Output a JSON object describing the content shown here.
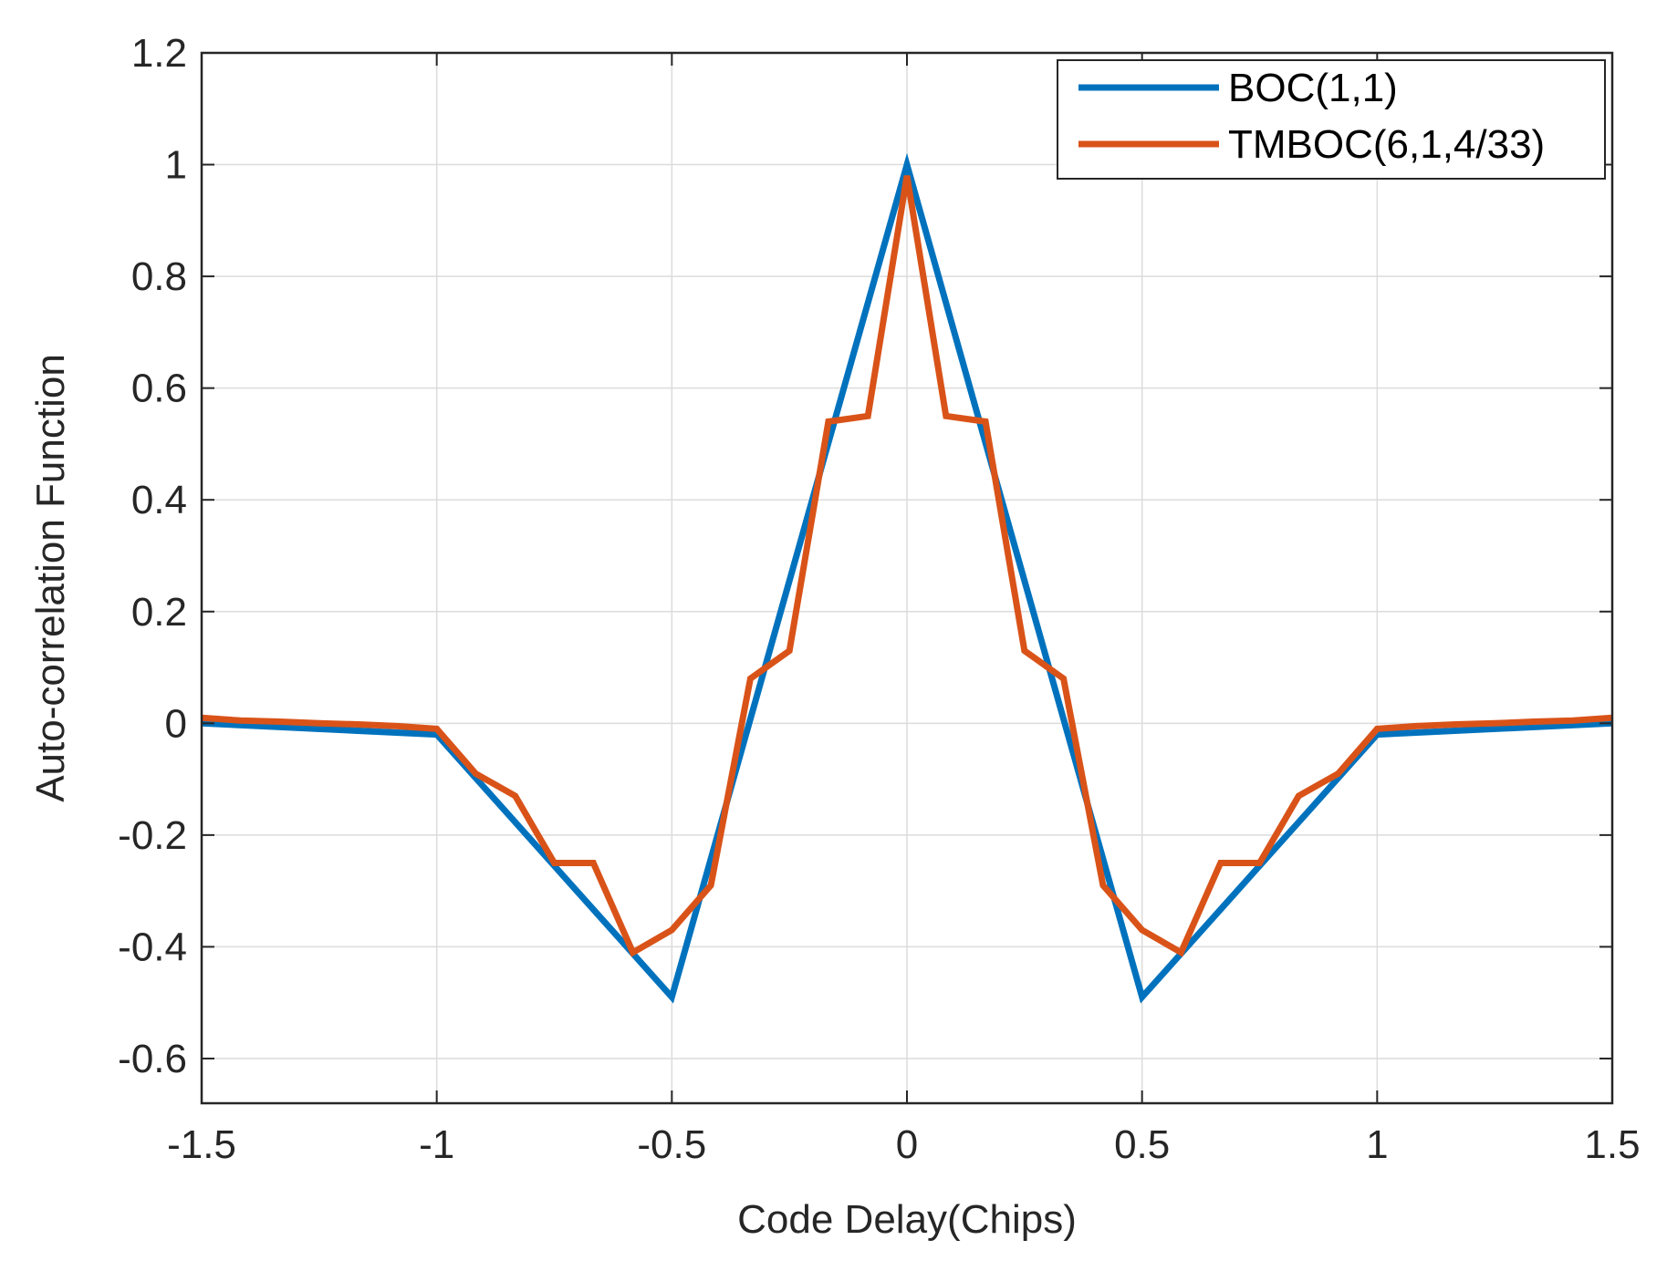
{
  "chart_data": {
    "type": "line",
    "title": "",
    "xlabel": "Code Delay(Chips)",
    "ylabel": "Auto-correlation Function",
    "xlim": [
      -1.5,
      1.5
    ],
    "ylim": [
      -0.68,
      1.2
    ],
    "xticks": [
      -1.5,
      -1,
      -0.5,
      0,
      0.5,
      1,
      1.5
    ],
    "xtick_labels": [
      "-1.5",
      "-1",
      "-0.5",
      "0",
      "0.5",
      "1",
      "1.5"
    ],
    "yticks": [
      -0.6,
      -0.4,
      -0.2,
      0,
      0.2,
      0.4,
      0.6,
      0.8,
      1,
      1.2
    ],
    "ytick_labels": [
      "-0.6",
      "-0.4",
      "-0.2",
      "0",
      "0.2",
      "0.4",
      "0.6",
      "0.8",
      "1",
      "1.2"
    ],
    "grid": true,
    "legend_position": "top-right",
    "series": [
      {
        "name": "BOC(1,1)",
        "color": "#0072BD",
        "points": [
          [
            -1.5,
            0.0
          ],
          [
            -1.0,
            -0.02
          ],
          [
            -0.5,
            -0.49
          ],
          [
            0.0,
            1.0
          ],
          [
            0.5,
            -0.49
          ],
          [
            1.0,
            -0.02
          ],
          [
            1.5,
            0.0
          ]
        ]
      },
      {
        "name": "TMBOC(6,1,4/33)",
        "color": "#D95319",
        "points": [
          [
            -1.5,
            0.01
          ],
          [
            -1.417,
            0.005
          ],
          [
            -1.333,
            0.003
          ],
          [
            -1.25,
            0.0
          ],
          [
            -1.167,
            -0.002
          ],
          [
            -1.083,
            -0.005
          ],
          [
            -1.0,
            -0.01
          ],
          [
            -0.917,
            -0.09
          ],
          [
            -0.833,
            -0.13
          ],
          [
            -0.75,
            -0.25
          ],
          [
            -0.667,
            -0.25
          ],
          [
            -0.583,
            -0.41
          ],
          [
            -0.5,
            -0.37
          ],
          [
            -0.417,
            -0.29
          ],
          [
            -0.333,
            0.08
          ],
          [
            -0.25,
            0.13
          ],
          [
            -0.167,
            0.54
          ],
          [
            -0.083,
            0.55
          ],
          [
            0.0,
            0.98
          ],
          [
            0.083,
            0.55
          ],
          [
            0.167,
            0.54
          ],
          [
            0.25,
            0.13
          ],
          [
            0.333,
            0.08
          ],
          [
            0.417,
            -0.29
          ],
          [
            0.5,
            -0.37
          ],
          [
            0.583,
            -0.41
          ],
          [
            0.667,
            -0.25
          ],
          [
            0.75,
            -0.25
          ],
          [
            0.833,
            -0.13
          ],
          [
            0.917,
            -0.09
          ],
          [
            1.0,
            -0.01
          ],
          [
            1.083,
            -0.005
          ],
          [
            1.167,
            -0.002
          ],
          [
            1.25,
            0.0
          ],
          [
            1.333,
            0.003
          ],
          [
            1.417,
            0.005
          ],
          [
            1.5,
            0.01
          ]
        ]
      }
    ]
  }
}
